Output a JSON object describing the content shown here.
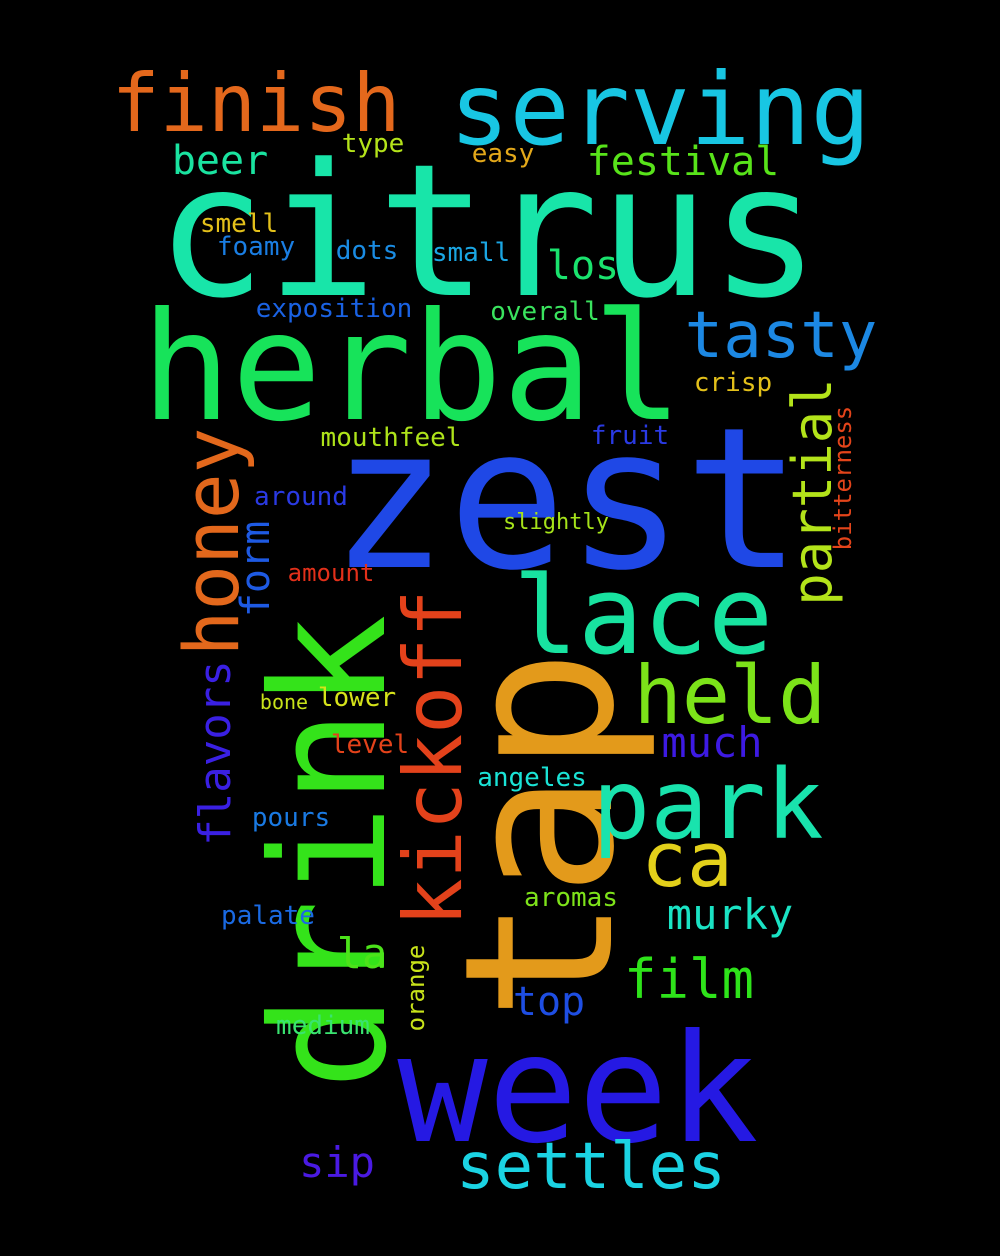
{
  "words": [
    {
      "text": "citrus",
      "color": "#18e5a9"
    },
    {
      "text": "herbal",
      "color": "#17e35a"
    },
    {
      "text": "zest",
      "color": "#1f48e6"
    },
    {
      "text": "tap",
      "color": "#e39a1b"
    },
    {
      "text": "drink",
      "color": "#34e31a"
    },
    {
      "text": "week",
      "color": "#2519e3"
    },
    {
      "text": "serving",
      "color": "#18c6e3"
    },
    {
      "text": "finish",
      "color": "#e4681c"
    },
    {
      "text": "lace",
      "color": "#18e3a0"
    },
    {
      "text": "park",
      "color": "#19e3ad"
    },
    {
      "text": "held",
      "color": "#7ce319"
    },
    {
      "text": "kickoff",
      "color": "#e3421b"
    },
    {
      "text": "honey",
      "color": "#e3681c"
    },
    {
      "text": "tasty",
      "color": "#1c88e3"
    },
    {
      "text": "ca",
      "color": "#e3d01a"
    },
    {
      "text": "partial",
      "color": "#b3e31a"
    },
    {
      "text": "settles",
      "color": "#1bd3e3"
    },
    {
      "text": "film",
      "color": "#2ee31a"
    },
    {
      "text": "murky",
      "color": "#1ae3c4"
    },
    {
      "text": "much",
      "color": "#3d1ae3"
    },
    {
      "text": "flavors",
      "color": "#3a20e3"
    },
    {
      "text": "form",
      "color": "#1e5ae3"
    },
    {
      "text": "festival",
      "color": "#58e31a"
    },
    {
      "text": "beer",
      "color": "#1ae3a0"
    },
    {
      "text": "los",
      "color": "#1ae36e"
    },
    {
      "text": "sip",
      "color": "#4a1ae3"
    },
    {
      "text": "top",
      "color": "#1e4ee3"
    },
    {
      "text": "la",
      "color": "#4ce31a"
    },
    {
      "text": "type",
      "color": "#b4e31a"
    },
    {
      "text": "easy",
      "color": "#e3a81a"
    },
    {
      "text": "smell",
      "color": "#e3c01a"
    },
    {
      "text": "foamy",
      "color": "#1a7ee3"
    },
    {
      "text": "dots",
      "color": "#1a8ce3"
    },
    {
      "text": "small",
      "color": "#1aa6e3"
    },
    {
      "text": "exposition",
      "color": "#1a62e3"
    },
    {
      "text": "overall",
      "color": "#3ae35e"
    },
    {
      "text": "crisp",
      "color": "#e3c01a"
    },
    {
      "text": "mouthfeel",
      "color": "#aee31a"
    },
    {
      "text": "fruit",
      "color": "#2a3ae3"
    },
    {
      "text": "bitterness",
      "color": "#e3441a"
    },
    {
      "text": "around",
      "color": "#2a3ae3"
    },
    {
      "text": "slightly",
      "color": "#a6e31a"
    },
    {
      "text": "amount",
      "color": "#e3301a"
    },
    {
      "text": "bone",
      "color": "#c8e31a"
    },
    {
      "text": "lower",
      "color": "#d6e31a"
    },
    {
      "text": "level",
      "color": "#e3421a"
    },
    {
      "text": "angeles",
      "color": "#1ae3d6"
    },
    {
      "text": "pours",
      "color": "#1a7ae3"
    },
    {
      "text": "aromas",
      "color": "#7ee31a"
    },
    {
      "text": "palate",
      "color": "#1a6ae3"
    },
    {
      "text": "orange",
      "color": "#c8e31a"
    },
    {
      "text": "medium",
      "color": "#3ae370"
    }
  ]
}
